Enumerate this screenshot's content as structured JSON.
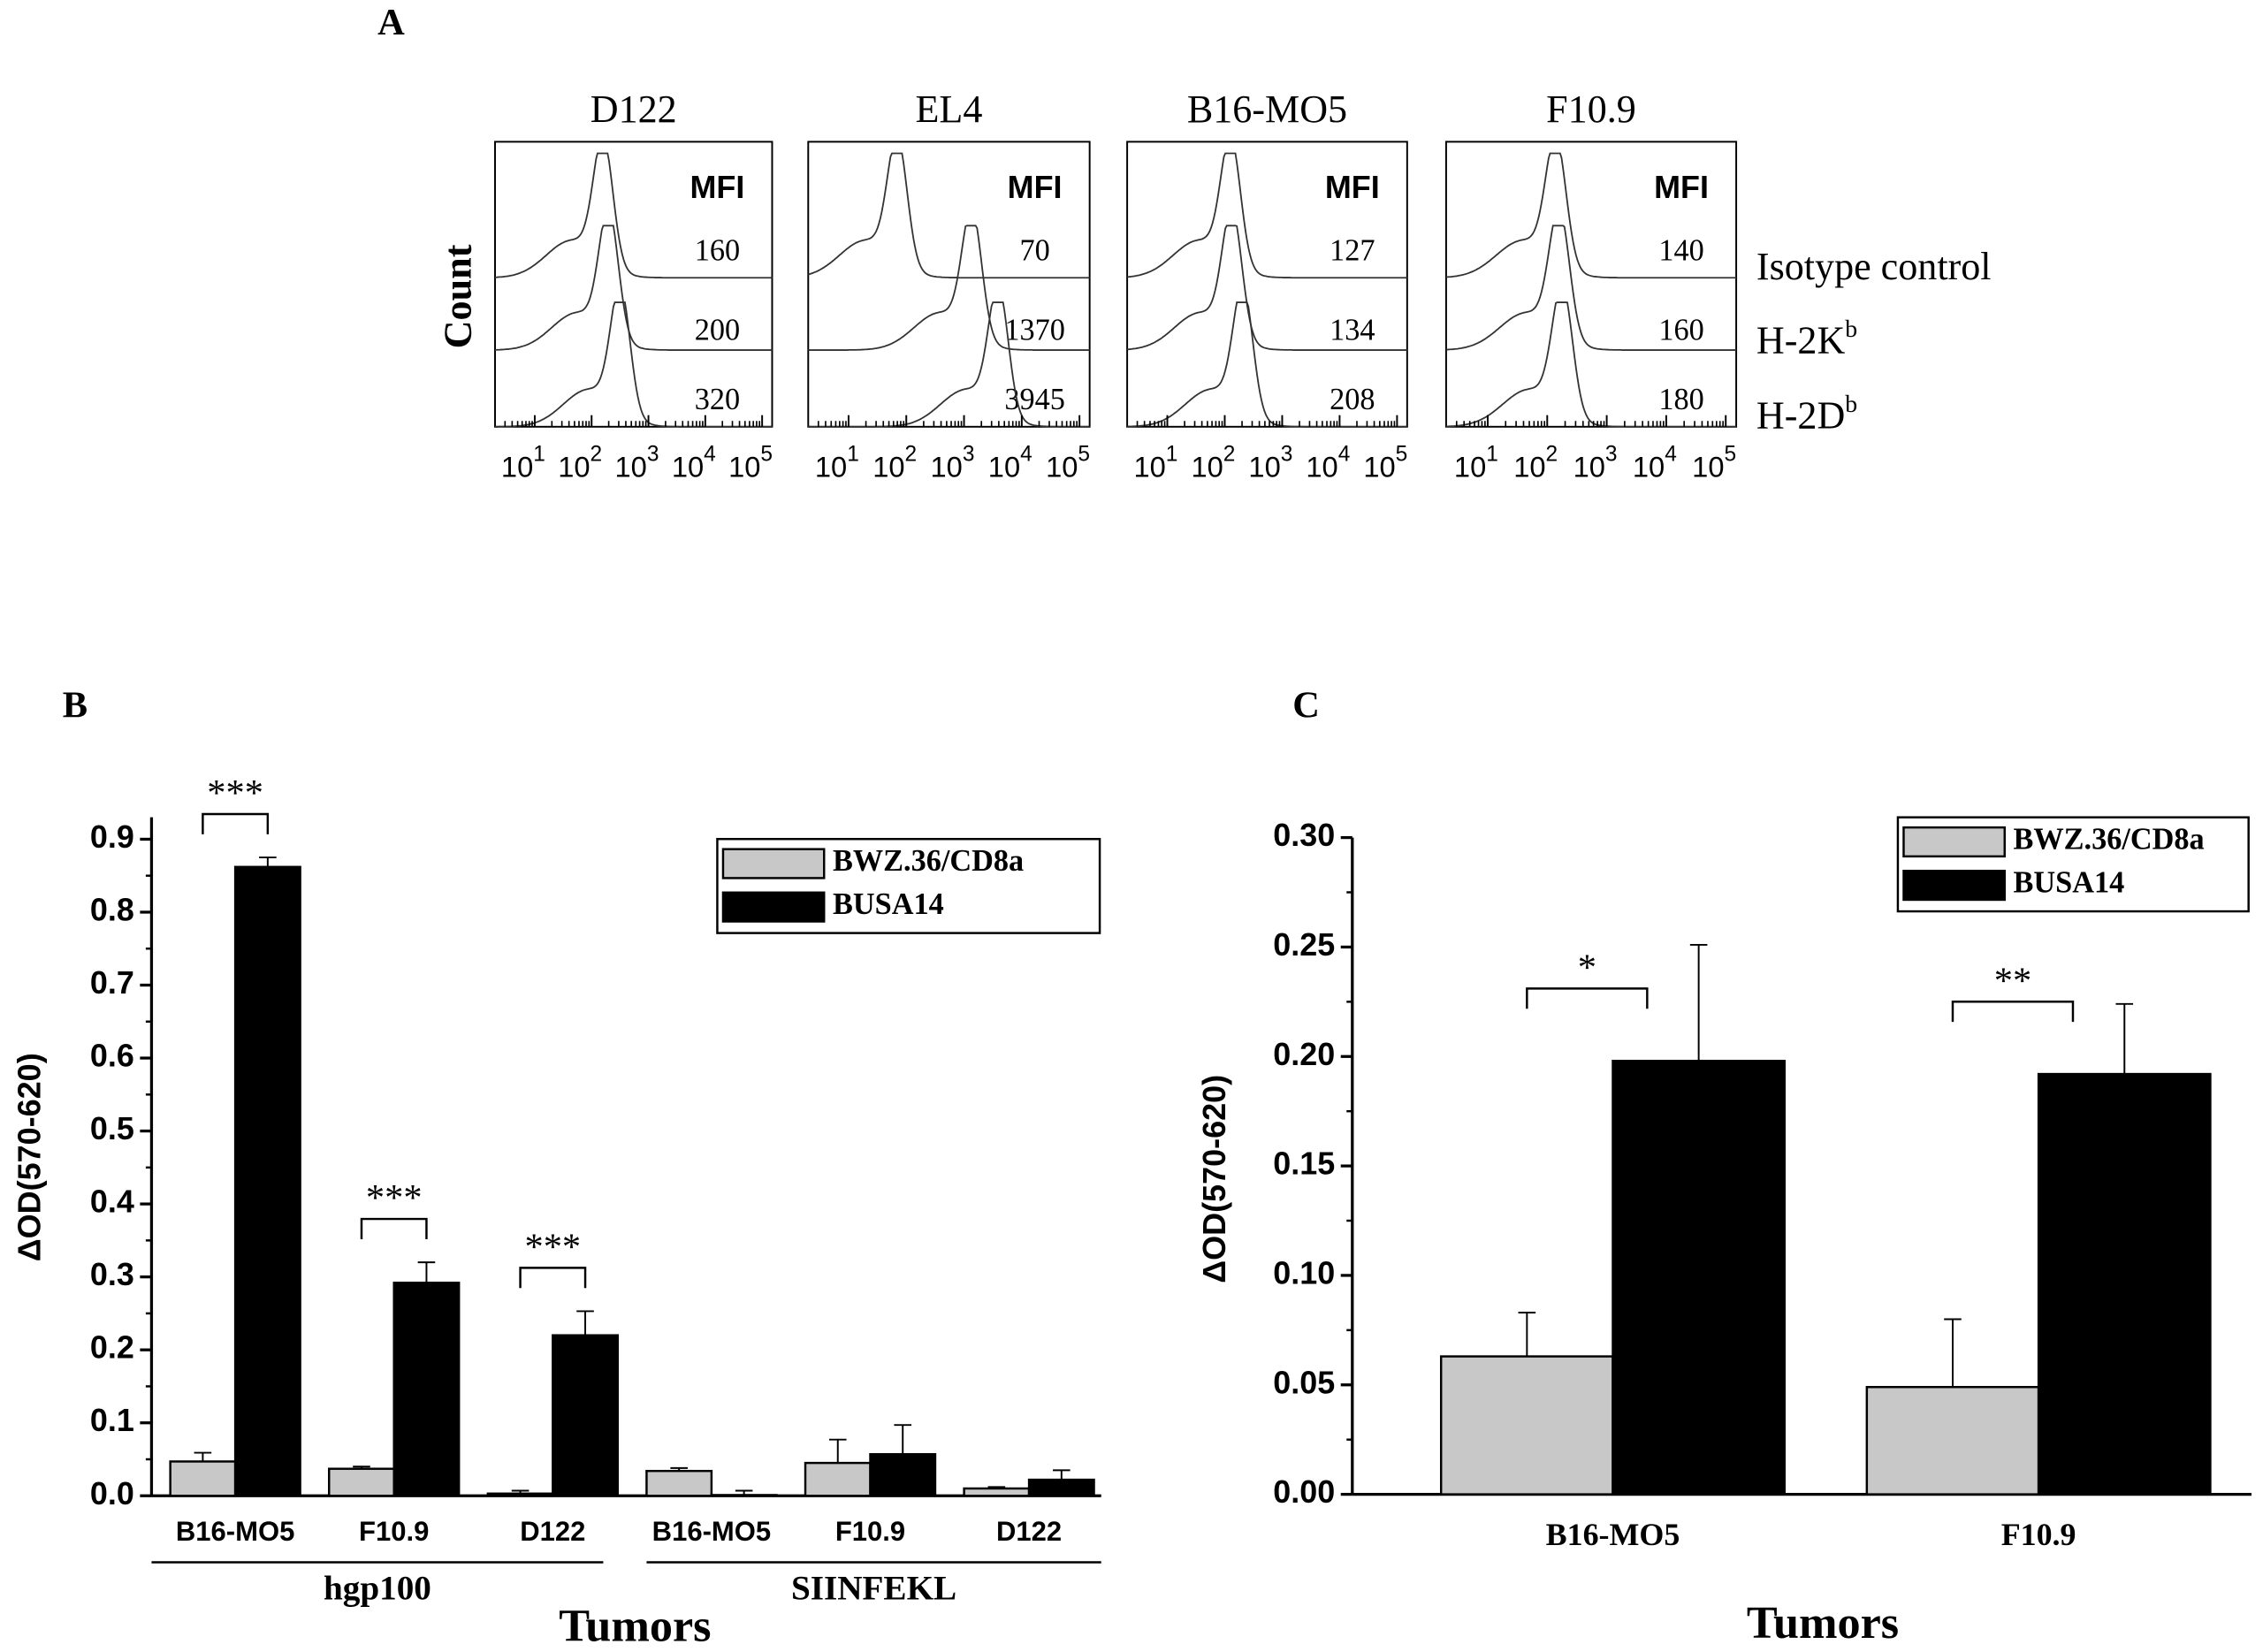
{
  "chart_data": [
    {
      "type": "flow-histogram",
      "panel": "A",
      "y_label": "Count",
      "mfi_header": "MFI",
      "rows": [
        {
          "text": "Isotype control"
        },
        {
          "text": "H-2K",
          "sup": "b"
        },
        {
          "text": "H-2D",
          "sup": "b"
        }
      ],
      "xscale": "log",
      "xlim": [
        2,
        150000
      ],
      "xticks": [
        {
          "value": 10,
          "label": "10",
          "sup": "1"
        },
        {
          "value": 100,
          "label": "10",
          "sup": "2"
        },
        {
          "value": 1000,
          "label": "10",
          "sup": "3"
        },
        {
          "value": 10000,
          "label": "10",
          "sup": "4"
        },
        {
          "value": 100000,
          "label": "10",
          "sup": "5"
        }
      ],
      "panels": [
        {
          "title": "D122",
          "mfi": [
            160,
            200,
            320
          ]
        },
        {
          "title": "EL4",
          "mfi": [
            70,
            1370,
            3945
          ]
        },
        {
          "title": "B16-MO5",
          "mfi": [
            127,
            134,
            208
          ]
        },
        {
          "title": "F10.9",
          "mfi": [
            140,
            160,
            180
          ]
        }
      ]
    },
    {
      "type": "bar",
      "panel": "B",
      "y_label": "ΔOD(570-620)",
      "x_label": "Tumors",
      "groups": [
        {
          "name": "hgp100",
          "categories": [
            "B16-MO5",
            "F10.9",
            "D122"
          ]
        },
        {
          "name": "SIINFEKL",
          "categories": [
            "B16-MO5",
            "F10.9",
            "D122"
          ]
        }
      ],
      "series": [
        {
          "name": "BWZ.36/CD8a",
          "color": "#c8c8c8",
          "values": [
            0.047,
            0.037,
            0.003,
            0.034,
            0.045,
            0.01
          ],
          "errors": [
            0.012,
            0.003,
            0.004,
            0.004,
            0.032,
            0.002
          ]
        },
        {
          "name": "BUSA14",
          "color": "#000000",
          "values": [
            0.862,
            0.292,
            0.22,
            0.001,
            0.057,
            0.022
          ],
          "errors": [
            0.013,
            0.028,
            0.033,
            0.006,
            0.04,
            0.013
          ]
        }
      ],
      "significance": [
        "***",
        "***",
        "***",
        null,
        null,
        null
      ],
      "ylim": [
        0,
        0.93
      ],
      "yticks": [
        {
          "value": 0,
          "label": "0.0"
        },
        0.1,
        0.2,
        0.3,
        0.4,
        0.5,
        0.6,
        0.7,
        0.8,
        0.9
      ]
    },
    {
      "type": "bar",
      "panel": "C",
      "y_label": "ΔOD(570-620)",
      "x_label": "Tumors",
      "groups": [
        {
          "name": null,
          "categories": [
            "B16-MO5",
            "F10.9"
          ]
        }
      ],
      "series": [
        {
          "name": "BWZ.36/CD8a",
          "color": "#c8c8c8",
          "values": [
            0.063,
            0.049
          ],
          "errors": [
            0.02,
            0.031
          ]
        },
        {
          "name": "BUSA14",
          "color": "#000000",
          "values": [
            0.198,
            0.192
          ],
          "errors": [
            0.053,
            0.032
          ]
        }
      ],
      "significance": [
        "*",
        "**"
      ],
      "ylim": [
        0,
        0.3
      ],
      "yticks": [
        {
          "value": 0,
          "label": "0.00"
        },
        {
          "value": 0.05,
          "label": "0.05"
        },
        {
          "value": 0.1,
          "label": "0.10"
        },
        {
          "value": 0.15,
          "label": "0.15"
        },
        {
          "value": 0.2,
          "label": "0.20"
        },
        {
          "value": 0.25,
          "label": "0.25"
        },
        {
          "value": 0.3,
          "label": "0.30"
        }
      ]
    }
  ]
}
